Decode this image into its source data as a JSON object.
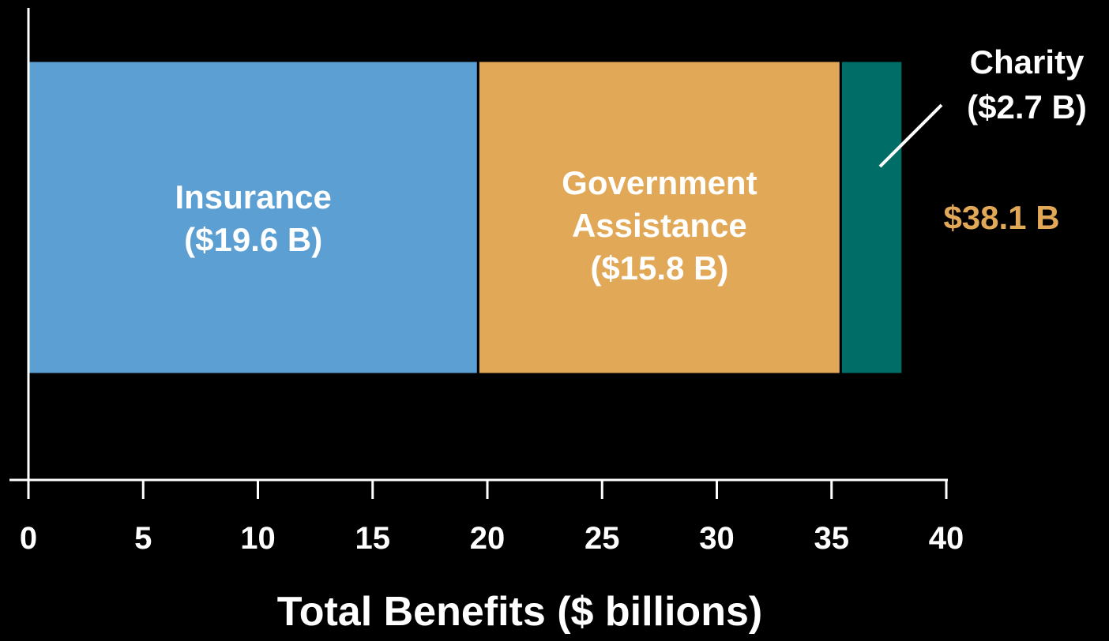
{
  "chart_data": {
    "type": "bar",
    "orientation": "horizontal",
    "stacked": true,
    "xlabel": "Total Benefits ($ billions)",
    "xlim": [
      0,
      40
    ],
    "xticks": [
      "0",
      "5",
      "10",
      "15",
      "20",
      "25",
      "30",
      "35",
      "40"
    ],
    "grid": false,
    "series": [
      {
        "name": "Insurance",
        "value": 19.6,
        "value_label": "($19.6 B)",
        "color": "#5B9FD3",
        "label_lines": [
          "Insurance",
          "($19.6 B)"
        ],
        "label_color": "#ffffff"
      },
      {
        "name": "Government Assistance",
        "value": 15.8,
        "value_label": "($15.8 B)",
        "color": "#E1A857",
        "label_lines": [
          "Government",
          "Assistance",
          "($15.8 B)"
        ],
        "label_color": "#ffffff"
      },
      {
        "name": "Charity",
        "value": 2.7,
        "value_label": "($2.7 B)",
        "color": "#006E66",
        "label_lines": [
          "Charity",
          "($2.7 B)"
        ],
        "label_color": "#ffffff"
      }
    ],
    "total_label": "$38.1 B",
    "total_value": 38.1,
    "total_color": "#E1A857",
    "background": "#000000",
    "axis_color": "#ffffff"
  }
}
